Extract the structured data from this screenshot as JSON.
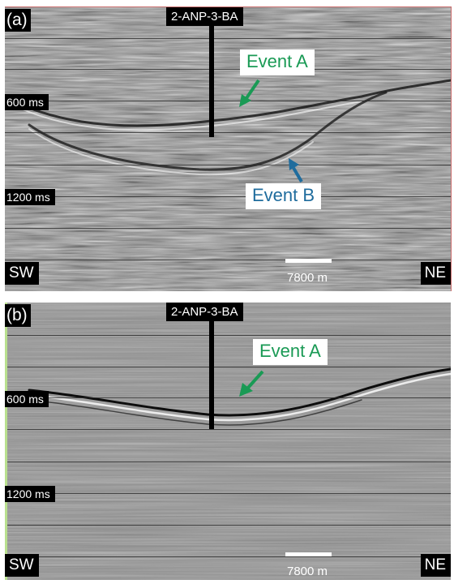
{
  "well_name": "2-ANP-3-BA",
  "scale_bar_label": "7800 m",
  "colors": {
    "event_a": "#1a9a55",
    "event_b": "#1f6c9d"
  },
  "panel_a": {
    "label": "(a)",
    "time_labels": [
      "600 ms",
      "1200 ms"
    ],
    "direction_left": "SW",
    "direction_right": "NE",
    "event_a": "Event A",
    "event_b": "Event B"
  },
  "panel_b": {
    "label": "(b)",
    "time_labels": [
      "600 ms",
      "1200 ms"
    ],
    "direction_left": "SW",
    "direction_right": "NE",
    "event_a": "Event A"
  }
}
